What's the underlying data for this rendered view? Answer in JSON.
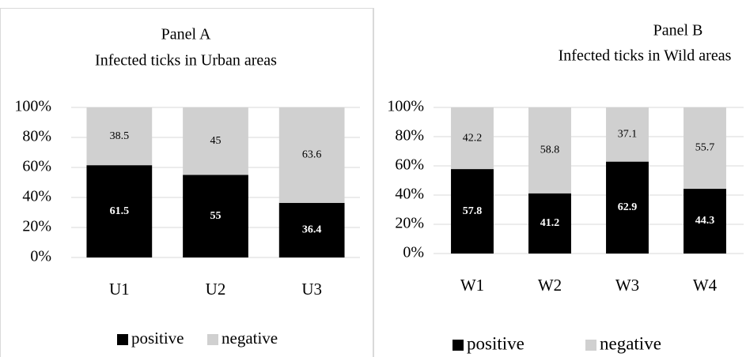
{
  "chart_data": [
    {
      "type": "bar",
      "stacked": true,
      "title": "Panel A",
      "subtitle": "Infected ticks in Urban areas",
      "categories": [
        "U1",
        "U2",
        "U3"
      ],
      "series": [
        {
          "name": "positive",
          "color": "#000000",
          "values": [
            61.5,
            55,
            36.4
          ]
        },
        {
          "name": "negative",
          "color": "#d0d0d0",
          "values": [
            38.5,
            45,
            63.6
          ]
        }
      ],
      "ylim": [
        0,
        100
      ],
      "yticks": [
        {
          "value": 0,
          "label": "0%"
        },
        {
          "value": 20,
          "label": "20%"
        },
        {
          "value": 40,
          "label": "40%"
        },
        {
          "value": 60,
          "label": "60%"
        },
        {
          "value": 80,
          "label": "80%"
        },
        {
          "value": 100,
          "label": "100%"
        }
      ],
      "grid": true,
      "legend": "bottom"
    },
    {
      "type": "bar",
      "stacked": true,
      "title": "Panel B",
      "subtitle": "Infected ticks in Wild areas",
      "categories": [
        "W1",
        "W2",
        "W3",
        "W4"
      ],
      "series": [
        {
          "name": "positive",
          "color": "#000000",
          "values": [
            57.8,
            41.2,
            62.9,
            44.3
          ]
        },
        {
          "name": "negative",
          "color": "#d0d0d0",
          "values": [
            42.2,
            58.8,
            37.1,
            55.7
          ]
        }
      ],
      "ylim": [
        0,
        100
      ],
      "yticks": [
        {
          "value": 0,
          "label": "0%"
        },
        {
          "value": 20,
          "label": "20%"
        },
        {
          "value": 40,
          "label": "40%"
        },
        {
          "value": 60,
          "label": "60%"
        },
        {
          "value": 80,
          "label": "80%"
        },
        {
          "value": 100,
          "label": "100%"
        }
      ],
      "grid": true,
      "legend": "bottom"
    }
  ]
}
